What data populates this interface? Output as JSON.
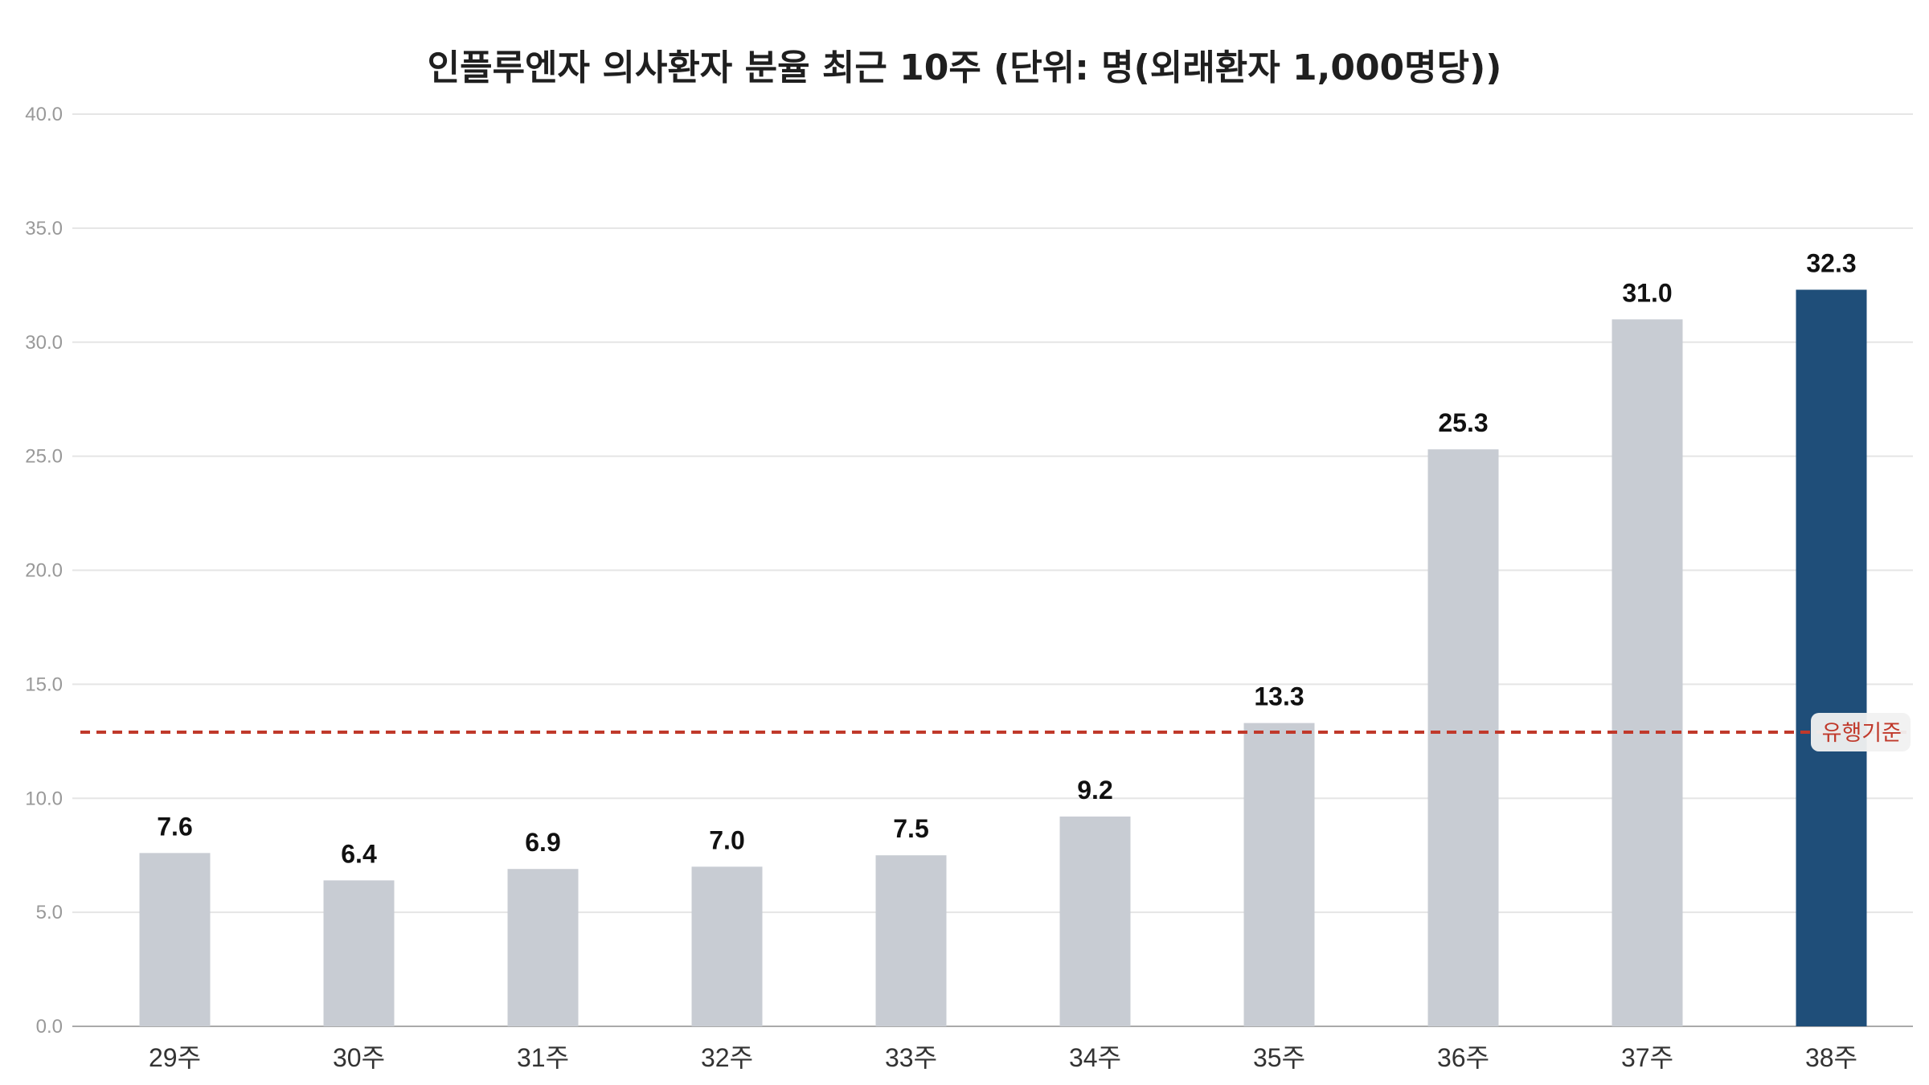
{
  "chart_data": {
    "type": "bar",
    "title": "인플루엔자 의사환자 분율 최근 10주 (단위: 명(외래환자 1,000명당))",
    "xlabel": "",
    "ylabel": "",
    "categories": [
      "29주",
      "30주",
      "31주",
      "32주",
      "33주",
      "34주",
      "35주",
      "36주",
      "37주",
      "38주"
    ],
    "values": [
      7.6,
      6.4,
      6.9,
      7.0,
      7.5,
      9.2,
      13.3,
      25.3,
      31.0,
      32.3
    ],
    "value_labels": [
      "7.6",
      "6.4",
      "6.9",
      "7.0",
      "7.5",
      "9.2",
      "13.3",
      "25.3",
      "31.0",
      "32.3"
    ],
    "ylim": [
      0,
      40
    ],
    "yticks": [
      0,
      5,
      10,
      15,
      20,
      25,
      30,
      35,
      40
    ],
    "ytick_labels": [
      "0.0",
      "5.0",
      "10.0",
      "15.0",
      "20.0",
      "25.0",
      "30.0",
      "35.0",
      "40.0"
    ],
    "grid": true,
    "highlight_index": 9,
    "colors": {
      "bar": "#c8ccd3",
      "highlight": "#1f4e79",
      "threshold": "#c0392b",
      "grid": "#e5e5e5",
      "tick_label": "#999999",
      "value_label": "#111111",
      "category_label": "#333333"
    },
    "threshold": {
      "value": 12.9,
      "label": "유행기준"
    }
  }
}
